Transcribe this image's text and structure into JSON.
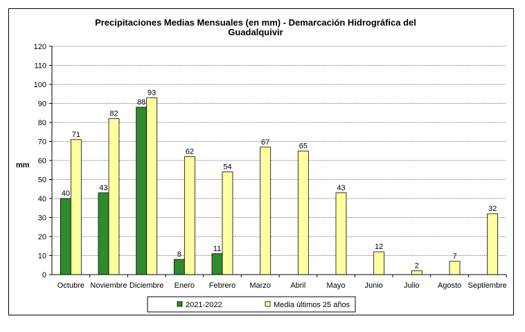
{
  "chart_data": {
    "type": "bar",
    "title_line1": "Precipitaciones Medias Mensuales (en mm) - Demarcación Hidrográfica del",
    "title_line2": "Guadalquivir",
    "ylabel": "mm",
    "xlabel": "",
    "ylim": [
      0,
      120
    ],
    "yticks": [
      0,
      10,
      20,
      30,
      40,
      50,
      60,
      70,
      80,
      90,
      100,
      110,
      120
    ],
    "grid": true,
    "legend_position": "bottom",
    "categories": [
      "Octubre",
      "Noviembre",
      "Diciembre",
      "Enero",
      "Febrero",
      "Marzo",
      "Abril",
      "Mayo",
      "Junio",
      "Julio",
      "Agosto",
      "Septiembre"
    ],
    "series": [
      {
        "name": "2021-2022",
        "color": "#2e8b2e",
        "values": [
          40,
          43,
          88,
          8,
          11,
          null,
          null,
          null,
          null,
          null,
          null,
          null
        ]
      },
      {
        "name": "Media últimos 25 años",
        "color": "#ffffa0",
        "values": [
          71,
          82,
          93,
          62,
          54,
          67,
          65,
          43,
          12,
          2,
          7,
          32
        ]
      }
    ],
    "data_labels": {
      "2021-2022": [
        "40",
        "43",
        "88",
        "8",
        "11",
        null,
        null,
        null,
        null,
        null,
        null,
        null
      ],
      "Media últimos 25 años": [
        "71",
        "82",
        "93",
        "62",
        "54",
        "67",
        "65",
        "43",
        "12",
        "2",
        "7",
        "32"
      ]
    }
  }
}
